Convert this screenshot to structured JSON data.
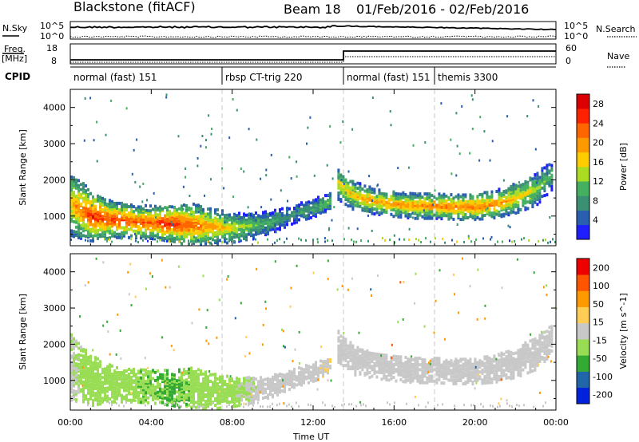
{
  "header": {
    "station": "Blackstone (fitACF)",
    "beam": "Beam 18",
    "date_range": "01/Feb/2016 - 02/Feb/2016"
  },
  "top_panels": {
    "nsky_label": "N.Sky",
    "nsearch_label": "N.Search",
    "nsky_ticks": [
      "10^5",
      "10^0"
    ],
    "nsearch_ticks": [
      "10^5",
      "10^0"
    ],
    "freq_label_1": "Freq.",
    "freq_label_2": "[MHz]",
    "freq_ticks": [
      "18",
      "8"
    ],
    "nave_label": "Nave",
    "nave_ticks": [
      "60",
      "0"
    ],
    "cpid_label": "CPID"
  },
  "cpid_segments": [
    {
      "label": "normal (fast) 151",
      "start_hour": 0.0
    },
    {
      "label": "rbsp CT-trig 220",
      "start_hour": 7.5
    },
    {
      "label": "normal (fast) 151",
      "start_hour": 13.5
    },
    {
      "label": "themis 3300",
      "start_hour": 18.0
    }
  ],
  "chart_data": [
    {
      "type": "heatmap",
      "name": "power",
      "ylabel": "Slant Range [km]",
      "xlabel": "Time UT",
      "x_ticks": [
        "00:00",
        "04:00",
        "08:00",
        "12:00",
        "16:00",
        "20:00",
        "00:00"
      ],
      "x_range_hours": [
        0,
        24
      ],
      "y_ticks": [
        1000,
        2000,
        3000,
        4000
      ],
      "ylim": [
        180,
        4500
      ],
      "colorbar": {
        "label": "Power [dB]",
        "ticks": [
          "4",
          "8",
          "12",
          "16",
          "20",
          "24",
          "28"
        ],
        "range": [
          0,
          30
        ],
        "colors": [
          "#1e1eff",
          "#2a5fb0",
          "#3b8f73",
          "#44b060",
          "#aadd22",
          "#ffcc00",
          "#ff9900",
          "#ff6600",
          "#ff2200",
          "#dd0000"
        ]
      },
      "bands": [
        {
          "hours": [
            0,
            1,
            2,
            3,
            4,
            5,
            6,
            7,
            8,
            9,
            10,
            11,
            12.4,
            12.9
          ],
          "center_km": [
            1400,
            1050,
            950,
            900,
            870,
            850,
            800,
            760,
            720,
            780,
            900,
            1100,
            1350,
            1500
          ],
          "width_km": [
            900,
            700,
            500,
            450,
            450,
            500,
            600,
            500,
            400,
            350,
            300,
            250,
            250,
            200
          ],
          "peak_db": [
            18,
            26,
            25,
            24,
            24,
            27,
            23,
            20,
            16,
            12,
            10,
            8,
            12,
            14
          ]
        },
        {
          "hours": [
            13.2,
            14,
            15,
            16,
            17,
            18,
            19,
            20,
            21,
            22,
            23,
            23.8
          ],
          "center_km": [
            1950,
            1600,
            1450,
            1380,
            1330,
            1330,
            1300,
            1300,
            1380,
            1550,
            1800,
            2200
          ],
          "width_km": [
            450,
            400,
            350,
            350,
            350,
            350,
            350,
            350,
            380,
            420,
            450,
            400
          ],
          "peak_db": [
            16,
            18,
            19,
            20,
            20,
            21,
            22,
            22,
            21,
            18,
            14,
            10
          ]
        }
      ]
    },
    {
      "type": "heatmap",
      "name": "velocity",
      "ylabel": "Slant Range [km]",
      "xlabel": "Time UT",
      "x_ticks": [
        "00:00",
        "04:00",
        "08:00",
        "12:00",
        "16:00",
        "20:00",
        "00:00"
      ],
      "x_range_hours": [
        0,
        24
      ],
      "y_ticks": [
        1000,
        2000,
        3000,
        4000
      ],
      "ylim": [
        180,
        4500
      ],
      "colorbar": {
        "label": "Velocity [m s^-1]",
        "ticks": [
          "200",
          "100",
          "50",
          "15",
          "-15",
          "-50",
          "-100",
          "-200"
        ],
        "range": [
          -250,
          250
        ],
        "colors": [
          "#ee0000",
          "#ff5500",
          "#ff9900",
          "#ffcc55",
          "#c8c8c8",
          "#99dd55",
          "#33aa33",
          "#2266aa",
          "#0022dd"
        ]
      },
      "bands": [
        {
          "hours": [
            0,
            1,
            2,
            3,
            4,
            5,
            6,
            7,
            8,
            9,
            10,
            11,
            12.4,
            12.9
          ],
          "center_km": [
            1400,
            1050,
            950,
            900,
            870,
            850,
            800,
            760,
            720,
            780,
            900,
            1100,
            1350,
            1500
          ],
          "width_km": [
            900,
            700,
            500,
            450,
            450,
            500,
            600,
            500,
            400,
            350,
            300,
            250,
            250,
            200
          ],
          "velocity": [
            -20,
            -60,
            -70,
            -70,
            -80,
            -90,
            -70,
            -50,
            -40,
            -20,
            -10,
            -5,
            20,
            30
          ]
        },
        {
          "hours": [
            13.2,
            14,
            15,
            16,
            17,
            18,
            19,
            20,
            21,
            22,
            23,
            23.8
          ],
          "center_km": [
            1950,
            1600,
            1450,
            1380,
            1330,
            1330,
            1300,
            1300,
            1380,
            1550,
            1800,
            2200
          ],
          "width_km": [
            450,
            400,
            350,
            350,
            350,
            350,
            350,
            350,
            380,
            420,
            450,
            400
          ],
          "velocity": [
            -5,
            0,
            0,
            0,
            0,
            0,
            0,
            0,
            0,
            0,
            0,
            0
          ]
        }
      ]
    }
  ]
}
